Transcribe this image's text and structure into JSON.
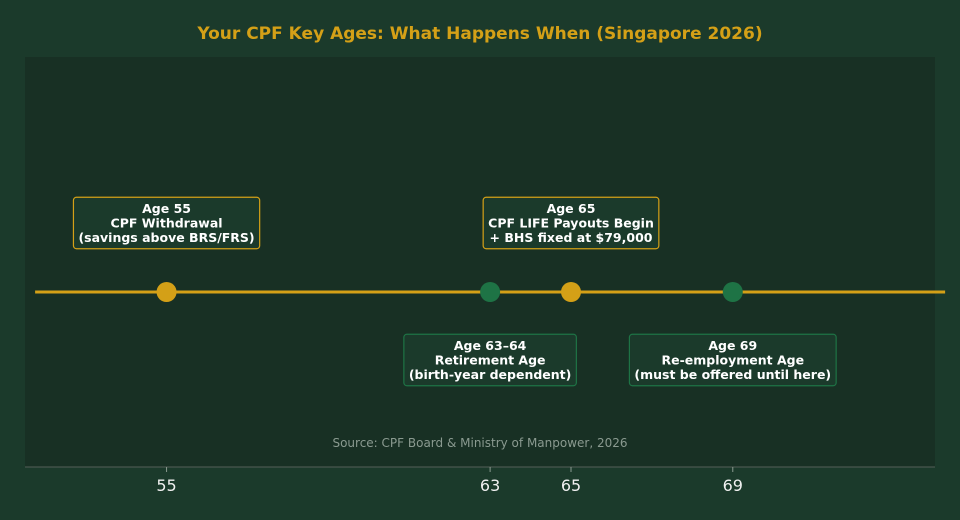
{
  "chart_data": {
    "type": "scatter",
    "title": "Your CPF Key Ages: What Happens When (Singapore 2026)",
    "source": "Source: CPF Board & Ministry of Manpower, 2026",
    "xlim": [
      51.5,
      74
    ],
    "x_ticks": [
      55,
      63,
      65,
      69
    ],
    "x_tick_labels": [
      "55",
      "63",
      "65",
      "69"
    ],
    "grid": false,
    "points": [
      {
        "x": 55,
        "color": "#d4a017",
        "label_position": "above",
        "lines": [
          "Age 55",
          "CPF Withdrawal",
          "(savings above BRS/FRS)"
        ]
      },
      {
        "x": 63,
        "color": "#1e7345",
        "label_position": "below",
        "lines": [
          "Age 63–64",
          "Retirement Age",
          "(birth-year dependent)"
        ]
      },
      {
        "x": 65,
        "color": "#d4a017",
        "label_position": "above",
        "lines": [
          "Age 65",
          "CPF LIFE Payouts Begin",
          "+ BHS fixed at $79,000"
        ]
      },
      {
        "x": 69,
        "color": "#1e7345",
        "label_position": "below",
        "lines": [
          "Age 69",
          "Re-employment Age",
          "(must be offered until here)"
        ]
      }
    ],
    "line_range": [
      51.75,
      74.25
    ],
    "colors": {
      "title": "#d4a017",
      "timeline": "#d4a017",
      "plot_bg": "#183024",
      "page_bg": "#1b3a2b",
      "box_fill": "#1b3a2b",
      "box_border_gold": "#d4a017",
      "box_border_green": "#1e7345"
    }
  }
}
